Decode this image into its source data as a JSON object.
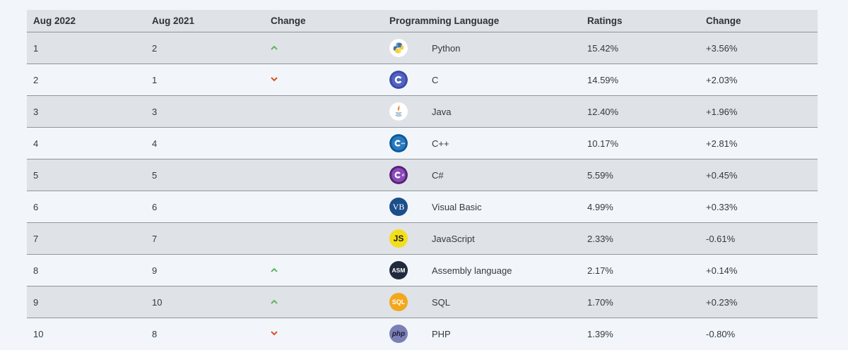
{
  "columns": {
    "aug2022": "Aug 2022",
    "aug2021": "Aug 2021",
    "change": "Change",
    "language": "Programming Language",
    "ratings": "Ratings",
    "delta": "Change"
  },
  "colors": {
    "up_arrow": "#5cb85c",
    "down_arrow": "#d9531e",
    "header_bg": "#dfe2e6",
    "stripe_bg": "#dfe2e6",
    "page_bg": "#f2f6fa"
  },
  "rows": [
    {
      "rank": "1",
      "prev": "2",
      "trend": "up",
      "logo": "python-icon",
      "lang": "Python",
      "rating": "15.42%",
      "delta": "+3.56%"
    },
    {
      "rank": "2",
      "prev": "1",
      "trend": "down",
      "logo": "c-icon",
      "lang": "C",
      "rating": "14.59%",
      "delta": "+2.03%"
    },
    {
      "rank": "3",
      "prev": "3",
      "trend": "none",
      "logo": "java-icon",
      "lang": "Java",
      "rating": "12.40%",
      "delta": "+1.96%"
    },
    {
      "rank": "4",
      "prev": "4",
      "trend": "none",
      "logo": "cpp-icon",
      "lang": "C++",
      "rating": "10.17%",
      "delta": "+2.81%"
    },
    {
      "rank": "5",
      "prev": "5",
      "trend": "none",
      "logo": "csharp-icon",
      "lang": "C#",
      "rating": "5.59%",
      "delta": "+0.45%"
    },
    {
      "rank": "6",
      "prev": "6",
      "trend": "none",
      "logo": "vb-icon",
      "logo_text": "VB",
      "lang": "Visual Basic",
      "rating": "4.99%",
      "delta": "+0.33%"
    },
    {
      "rank": "7",
      "prev": "7",
      "trend": "none",
      "logo": "js-icon",
      "logo_text": "JS",
      "lang": "JavaScript",
      "rating": "2.33%",
      "delta": "-0.61%"
    },
    {
      "rank": "8",
      "prev": "9",
      "trend": "up",
      "logo": "asm-icon",
      "logo_text": "ASM",
      "lang": "Assembly language",
      "rating": "2.17%",
      "delta": "+0.14%"
    },
    {
      "rank": "9",
      "prev": "10",
      "trend": "up",
      "logo": "sql-icon",
      "logo_text": "SQL",
      "lang": "SQL",
      "rating": "1.70%",
      "delta": "+0.23%"
    },
    {
      "rank": "10",
      "prev": "8",
      "trend": "down",
      "logo": "php-icon",
      "logo_text": "php",
      "lang": "PHP",
      "rating": "1.39%",
      "delta": "-0.80%"
    }
  ]
}
